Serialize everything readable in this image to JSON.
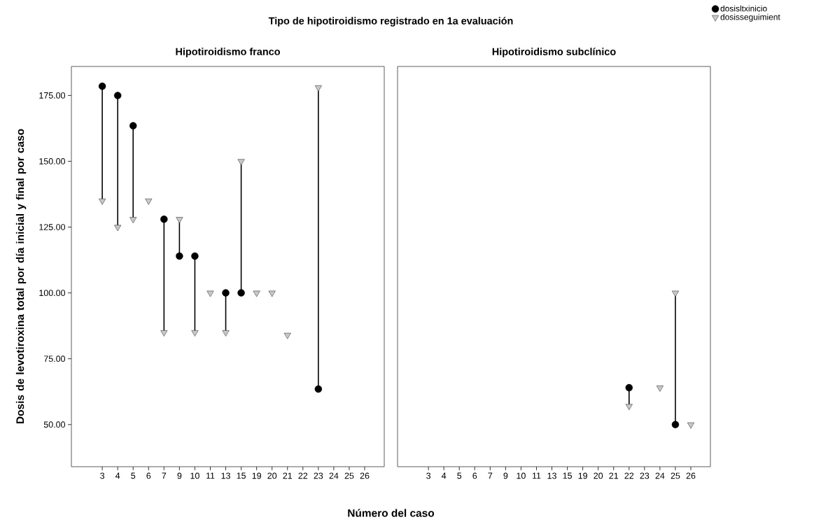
{
  "chart_data": [
    {
      "type": "scatter",
      "title": "Tipo de hipotiroidismo registrado en 1a evaluación",
      "subtitle": "Hipotiroidismo franco",
      "xlabel": "Número del caso",
      "ylabel": "Dosis de levotiroxina total por día inicial y final por caso",
      "categories": [
        "3",
        "4",
        "5",
        "6",
        "7",
        "9",
        "10",
        "11",
        "13",
        "15",
        "19",
        "20",
        "21",
        "22",
        "23",
        "24",
        "25",
        "26"
      ],
      "series": [
        {
          "name": "dosisltxinicio",
          "color": "#000000",
          "marker": "circle",
          "values": [
            178.5,
            175,
            163.5,
            null,
            128,
            114,
            114,
            null,
            100,
            100,
            null,
            null,
            null,
            null,
            63.5,
            null,
            null,
            null
          ]
        },
        {
          "name": "dosisseguimient",
          "color": "#c8c8c8",
          "marker": "triangle",
          "values": [
            135,
            125,
            128,
            135,
            85,
            128,
            85,
            100,
            85,
            150,
            100,
            100,
            84,
            null,
            178,
            null,
            null,
            null
          ]
        }
      ],
      "ylim": [
        34,
        186
      ],
      "yticks": [
        {
          "value": 50,
          "label": "50.00"
        },
        {
          "value": 75,
          "label": "75.00"
        },
        {
          "value": 100,
          "label": "100.00"
        },
        {
          "value": 125,
          "label": "125.00"
        },
        {
          "value": 150,
          "label": "150.00"
        },
        {
          "value": 175,
          "label": "175.00"
        }
      ],
      "legend": "top right"
    },
    {
      "type": "scatter",
      "subtitle": "Hipotiroidismo subclínico",
      "categories": [
        "3",
        "4",
        "5",
        "6",
        "7",
        "9",
        "10",
        "11",
        "13",
        "15",
        "19",
        "20",
        "21",
        "22",
        "23",
        "24",
        "25",
        "26"
      ],
      "series": [
        {
          "color": "#000000",
          "marker": "circle",
          "values": [
            null,
            null,
            null,
            null,
            null,
            null,
            null,
            null,
            null,
            null,
            null,
            null,
            null,
            64,
            null,
            null,
            50,
            null
          ]
        },
        {
          "color": "#c8c8c8",
          "marker": "triangle",
          "values": [
            null,
            null,
            null,
            null,
            null,
            null,
            null,
            null,
            null,
            null,
            null,
            null,
            null,
            57,
            null,
            64,
            100,
            50
          ]
        }
      ],
      "ylim": [
        34,
        186
      ],
      "tick_labels": "x"
    }
  ]
}
